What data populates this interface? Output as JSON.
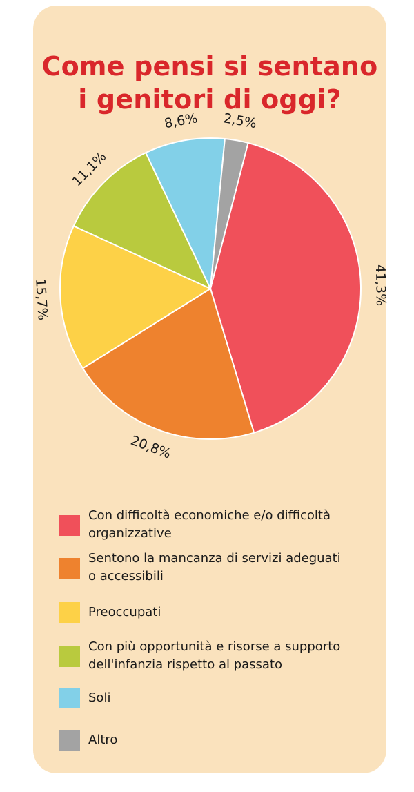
{
  "chart_data": {
    "type": "pie",
    "title": "Come pensi si sentano i genitori di oggi?",
    "title_lines": [
      "Come pensi si sentano",
      "i genitori di oggi?"
    ],
    "slices": [
      {
        "label": "Con difficoltà economiche e/o difficoltà organizzative",
        "value": 41.3,
        "value_label": "41,3%",
        "color": "#f0505a"
      },
      {
        "label": "Sentono la mancanza di servizi adeguati o accessibili",
        "value": 20.8,
        "value_label": "20,8%",
        "color": "#ee822e"
      },
      {
        "label": "Preoccupati",
        "value": 15.7,
        "value_label": "15,7%",
        "color": "#fdd147"
      },
      {
        "label": "Con più opportunità e risorse a supporto dell'infanzia rispetto al passato",
        "value": 11.1,
        "value_label": "11,1%",
        "color": "#b9ca3e"
      },
      {
        "label": "Soli",
        "value": 8.6,
        "value_label": "8,6%",
        "color": "#82d0e8"
      },
      {
        "label": "Altro",
        "value": 2.5,
        "value_label": "2,5%",
        "color": "#a3a3a3"
      }
    ],
    "legend_items": [
      {
        "lines": [
          "Con difficoltà economiche e/o difficoltà",
          "organizzative"
        ]
      },
      {
        "lines": [
          "Sentono la mancanza di servizi adeguati",
          "o accessibili"
        ]
      },
      {
        "lines": [
          "Preoccupati"
        ]
      },
      {
        "lines": [
          "Con più opportunità e risorse a supporto",
          "dell'infanzia rispetto al passato"
        ]
      },
      {
        "lines": [
          "Soli"
        ]
      },
      {
        "lines": [
          "Altro"
        ]
      }
    ]
  }
}
